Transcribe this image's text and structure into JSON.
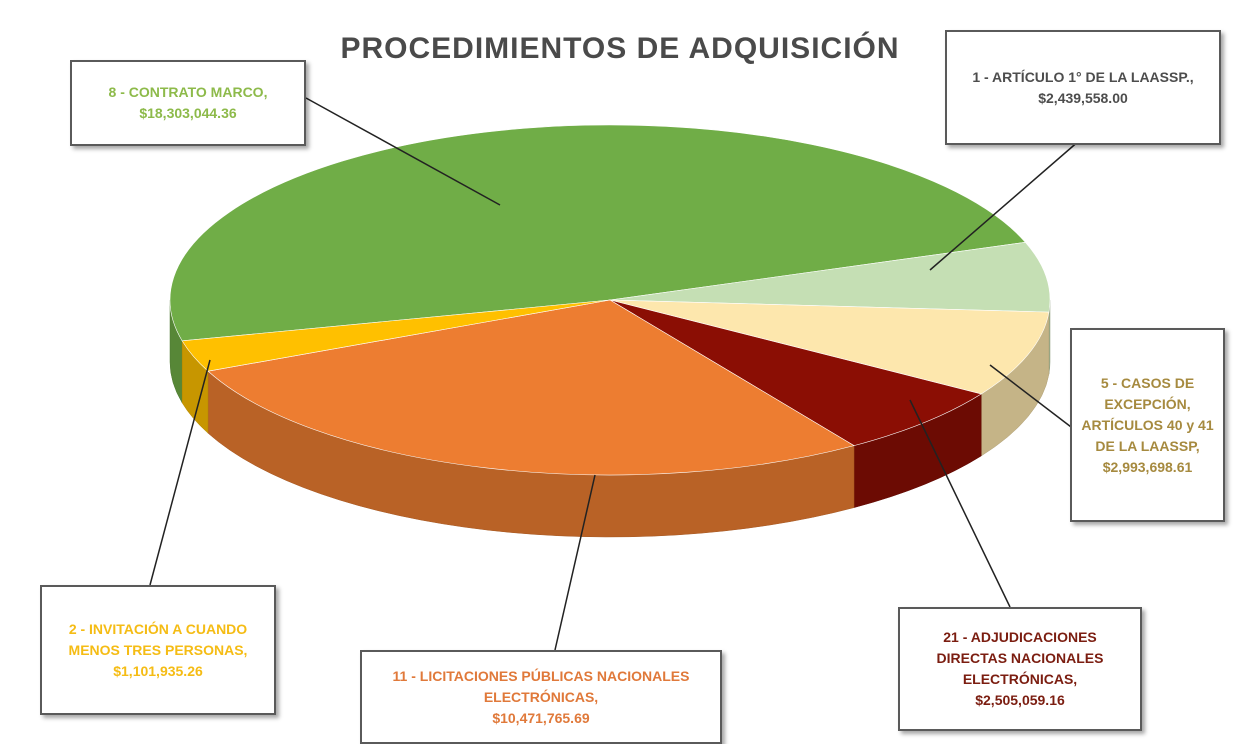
{
  "chart_data": {
    "type": "pie",
    "title": "PROCEDIMIENTOS DE ADQUISICIÓN",
    "categories": [
      "8 - CONTRATO MARCO,",
      "1 - ARTÍCULO 1° DE LA LAASSP.,",
      "5 - CASOS DE EXCEPCIÓN, ARTÍCULOS 40 y 41 DE LA LAASSP,",
      "21 - ADJUDICACIONES DIRECTAS NACIONALES ELECTRÓNICAS,",
      "11 - LICITACIONES PÚBLICAS NACIONALES ELECTRÓNICAS,",
      "2 - INVITACIÓN A CUANDO MENOS TRES PERSONAS,"
    ],
    "values": [
      18303044.36,
      2439558.0,
      2993698.61,
      2505059.16,
      10471765.69,
      1101935.26
    ],
    "value_labels": [
      "$18,303,044.36",
      "$2,439,558.00",
      "$2,993,698.61",
      "$2,505,059.16",
      "$10,471,765.69",
      "$1,101,935.26"
    ],
    "colors": [
      "#70ad47",
      "#c5dfb4",
      "#fde7ad",
      "#8b0e04",
      "#ed7d31",
      "#ffc000"
    ]
  }
}
